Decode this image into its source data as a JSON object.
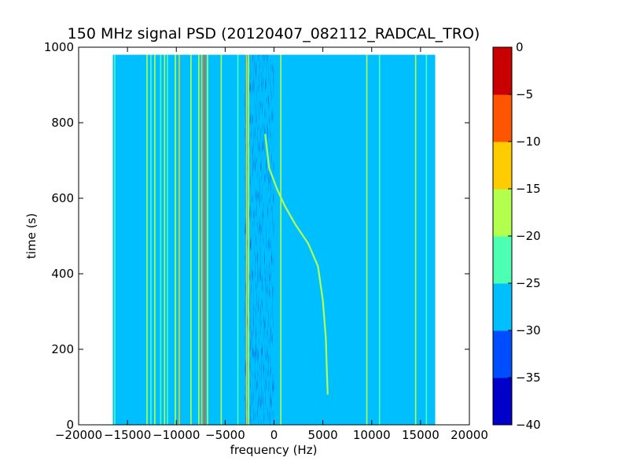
{
  "chart_data": {
    "type": "heatmap",
    "title": "150 MHz signal PSD (20120407_082112_RADCAL_TRO)",
    "xlabel": "frequency (Hz)",
    "ylabel": "time (s)",
    "xlim": [
      -20000,
      20000
    ],
    "ylim": [
      0,
      1000
    ],
    "xticks": [
      -20000,
      -15000,
      -10000,
      -5000,
      0,
      5000,
      10000,
      15000,
      20000
    ],
    "xtick_labels": [
      "−20000",
      "−15000",
      "−10000",
      "−5000",
      "0",
      "5000",
      "10000",
      "15000",
      "20000"
    ],
    "yticks": [
      0,
      200,
      400,
      600,
      800,
      1000
    ],
    "ytick_labels": [
      "0",
      "200",
      "400",
      "600",
      "800",
      "1000"
    ],
    "data_extent": {
      "x": [
        -16500,
        16500
      ],
      "y": [
        0,
        980
      ]
    },
    "background_level": -27.5,
    "colorbar": {
      "range": [
        -40,
        0
      ],
      "levels": [
        -40,
        -35,
        -30,
        -25,
        -20,
        -15,
        -10,
        -5,
        0
      ],
      "tick_labels": [
        "−40",
        "−35",
        "−30",
        "−25",
        "−20",
        "−15",
        "−10",
        "−5",
        "0"
      ],
      "colors": [
        "#0000c8",
        "#004cff",
        "#00bfff",
        "#4dffb3",
        "#b3ff4d",
        "#ffcc00",
        "#ff5500",
        "#c80000"
      ]
    },
    "carrier_lines": [
      {
        "freq": -16300,
        "level": -22
      },
      {
        "freq": -13000,
        "level": -17
      },
      {
        "freq": -12600,
        "level": -22
      },
      {
        "freq": -12200,
        "level": -17
      },
      {
        "freq": -11600,
        "level": -22
      },
      {
        "freq": -11200,
        "level": -17
      },
      {
        "freq": -10900,
        "level": -22
      },
      {
        "freq": -10100,
        "level": -17
      },
      {
        "freq": -9700,
        "level": -12
      },
      {
        "freq": -8500,
        "level": -17
      },
      {
        "freq": -7700,
        "level": -17
      },
      {
        "freq": -7400,
        "level": -12
      },
      {
        "freq": -7100,
        "level": -7
      },
      {
        "freq": -6800,
        "level": -17
      },
      {
        "freq": -5400,
        "level": -17
      },
      {
        "freq": -3700,
        "level": -22
      },
      {
        "freq": -2800,
        "level": -12
      },
      {
        "freq": -2600,
        "level": -17
      },
      {
        "freq": 700,
        "level": -17
      },
      {
        "freq": 9500,
        "level": -17
      },
      {
        "freq": 10800,
        "level": -22
      },
      {
        "freq": 14500,
        "level": -17
      },
      {
        "freq": 15600,
        "level": -22
      }
    ],
    "noise_band": {
      "freq": [
        -3000,
        0
      ],
      "level": -32.5
    },
    "sweep_trace": {
      "level": -17,
      "points": [
        [
          5500,
          80
        ],
        [
          5400,
          150
        ],
        [
          5300,
          230
        ],
        [
          5000,
          330
        ],
        [
          4500,
          420
        ],
        [
          3500,
          480
        ],
        [
          2200,
          530
        ],
        [
          1100,
          580
        ],
        [
          300,
          625
        ],
        [
          -500,
          680
        ],
        [
          -900,
          770
        ]
      ]
    }
  }
}
